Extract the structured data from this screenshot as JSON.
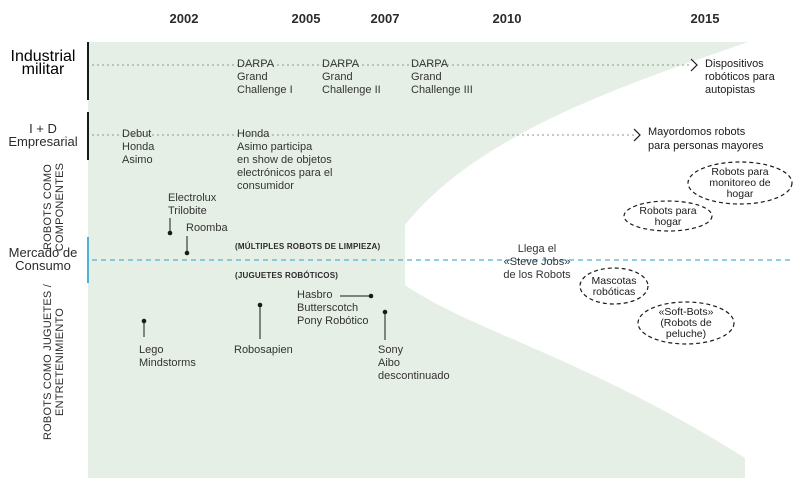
{
  "years": [
    "2002",
    "2005",
    "2007",
    "2010",
    "2015"
  ],
  "lanes": {
    "industrial": "Industrial\nmilitar",
    "id": "I + D\nEmpresarial",
    "robots_componentes": "ROBOTS COMO\nCOMPONENTES",
    "mercado": "Mercado de\nConsumo",
    "robots_juguetes": "ROBOTS COMO JUGUETES /\nENTRETENIMIENTO"
  },
  "events": {
    "darpa1": "DARPA\nGrand\nChallenge I",
    "darpa2": "DARPA\nGrand\nChallenge II",
    "darpa3": "DARPA\nGrand\nChallenge III",
    "autopistas": "Dispositivos\nrobóticos para\nautopistas",
    "debut": "Debut\nHonda\nAsimo",
    "honda_show": "Honda\nAsimo participa\nen show de objetos\nelectrónicos para el\nconsumidor",
    "mayordomos": "Mayordomos robots\npara personas mayores",
    "electrolux": "Electrolux\nTrilobite",
    "roomba": "Roomba",
    "limpieza": "(MÚLTIPLES ROBOTS DE LIMPIEZA)",
    "juguetes": "(JUGUETES ROBÓTICOS)",
    "steve_jobs": "Llega el\n«Steve Jobs»\nde los Robots",
    "hasbro": "Hasbro\nButterscotch\nPony Robótico",
    "lego": "Lego\nMindstorms",
    "robosapien": "Robosapien",
    "aibo": "Sony\nAibo\ndescontinuado"
  },
  "bubbles": {
    "monitoreo": "Robots para\nmonitoreo de\nhogar",
    "hogar": "Robots para\nhogar",
    "mascotas": "Mascotas\nrobóticas",
    "softbots": "«Soft-Bots»\n(Robots de\npeluche)"
  },
  "colors": {
    "background_area": "#e6efe6",
    "consumer_line": "#4fb0d8",
    "dotted": "#8a9a8a"
  }
}
